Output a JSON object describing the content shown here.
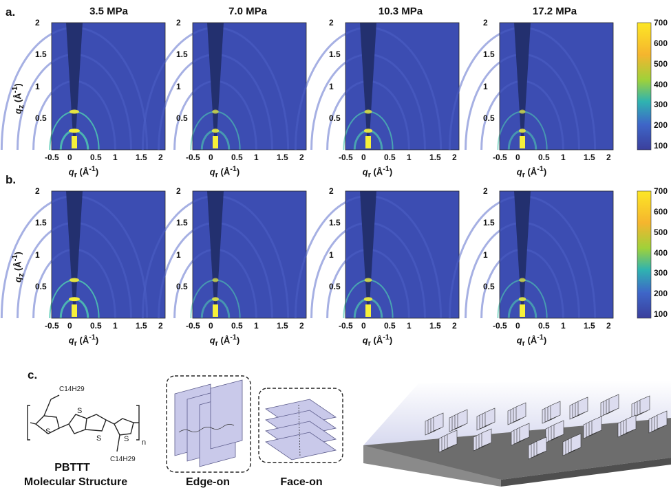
{
  "panel_labels": {
    "a": "a.",
    "b": "b.",
    "c": "c."
  },
  "pressures": [
    "3.5 MPa",
    "7.0 MPa",
    "10.3 MPa",
    "17.2 MPa"
  ],
  "x_ticks": [
    "-0.5",
    "0",
    "0.5",
    "1",
    "1.5",
    "2"
  ],
  "y_ticks": [
    "2",
    "1.5",
    "1",
    "0.5"
  ],
  "x_axis_label": "qr (Å-1)",
  "y_axis_label": "qz (Å-1)",
  "colorbar_ticks": [
    "700",
    "600",
    "500",
    "400",
    "300",
    "200",
    "100"
  ],
  "molecule": {
    "name": "PBTTT",
    "caption": "Molecular Structure",
    "side_chain": "C14H29",
    "atom": "S",
    "repeat": "n"
  },
  "orientations": {
    "edge": "Edge-on",
    "face": "Face-on"
  },
  "colors": {
    "background": "#3a4bb0",
    "shadow": "#23306f",
    "ring": "#4fc8b0",
    "peak": "#f6f03a",
    "colorbar_top": "#fde725",
    "colorbar_mid": "#2fb3b0",
    "colorbar_bottom": "#3b3f9c"
  }
}
